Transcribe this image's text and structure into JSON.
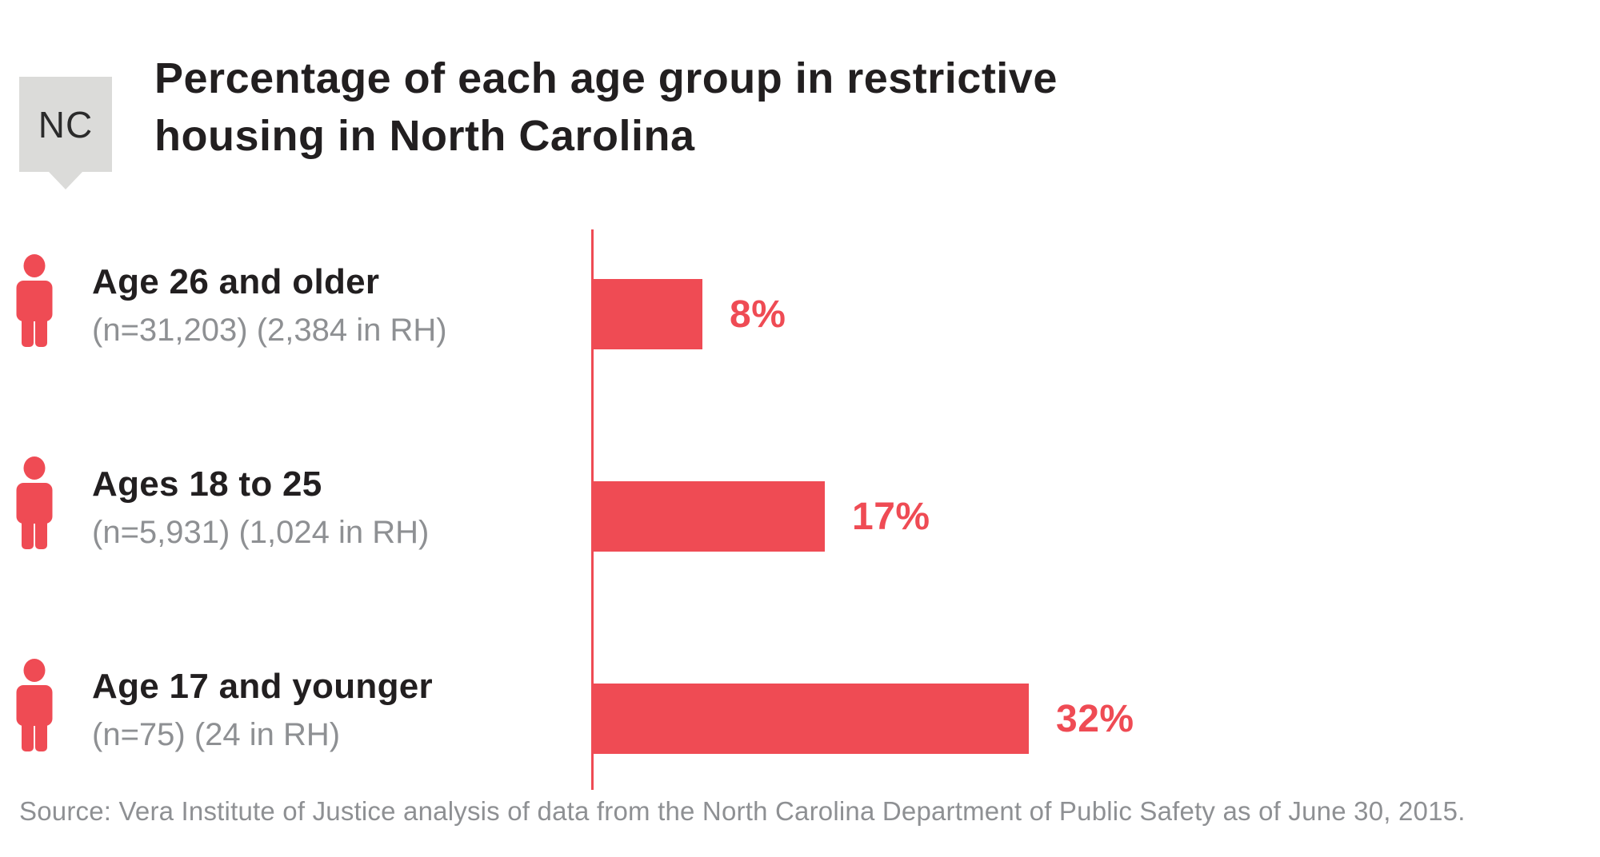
{
  "badge": {
    "label": "NC"
  },
  "title": {
    "line1": "Percentage of each age group in restrictive",
    "line2": "housing in North Carolina"
  },
  "rows": [
    {
      "label": "Age 26 and older",
      "sublabel": "(n=31,203) (2,384 in RH)",
      "pct_label": "8%"
    },
    {
      "label": "Ages 18 to 25",
      "sublabel": "(n=5,931) (1,024 in RH)",
      "pct_label": "17%"
    },
    {
      "label": "Age 17 and younger",
      "sublabel": "(n=75) (24 in RH)",
      "pct_label": "32%"
    }
  ],
  "source": "Source: Vera Institute of Justice analysis of data from the North Carolina Department of Public Safety as of June 30, 2015.",
  "colors": {
    "accent_red": "#EF4B54",
    "badge_gray": "#DBDBD9",
    "text_dark": "#221F20",
    "text_gray": "#8E9093"
  },
  "chart_data": {
    "type": "bar",
    "orientation": "horizontal",
    "title": "Percentage of each age group in restrictive housing in North Carolina",
    "region_tag": "NC",
    "categories": [
      "Age 26 and older",
      "Ages 18 to 25",
      "Age 17 and younger"
    ],
    "category_annotations": [
      "(n=31,203) (2,384 in RH)",
      "(n=5,931) (1,024 in RH)",
      "(n=75) (24 in RH)"
    ],
    "values": [
      8,
      17,
      32
    ],
    "value_labels": [
      "8%",
      "17%",
      "32%"
    ],
    "unit": "percent",
    "bar_color": "#EF4B54",
    "gridlines": false,
    "value_axis_shown": false,
    "baseline_axis": "vertical red line at 0",
    "source": "Source: Vera Institute of Justice analysis of data from the North Carolina Department of Public Safety as of June 30, 2015."
  }
}
